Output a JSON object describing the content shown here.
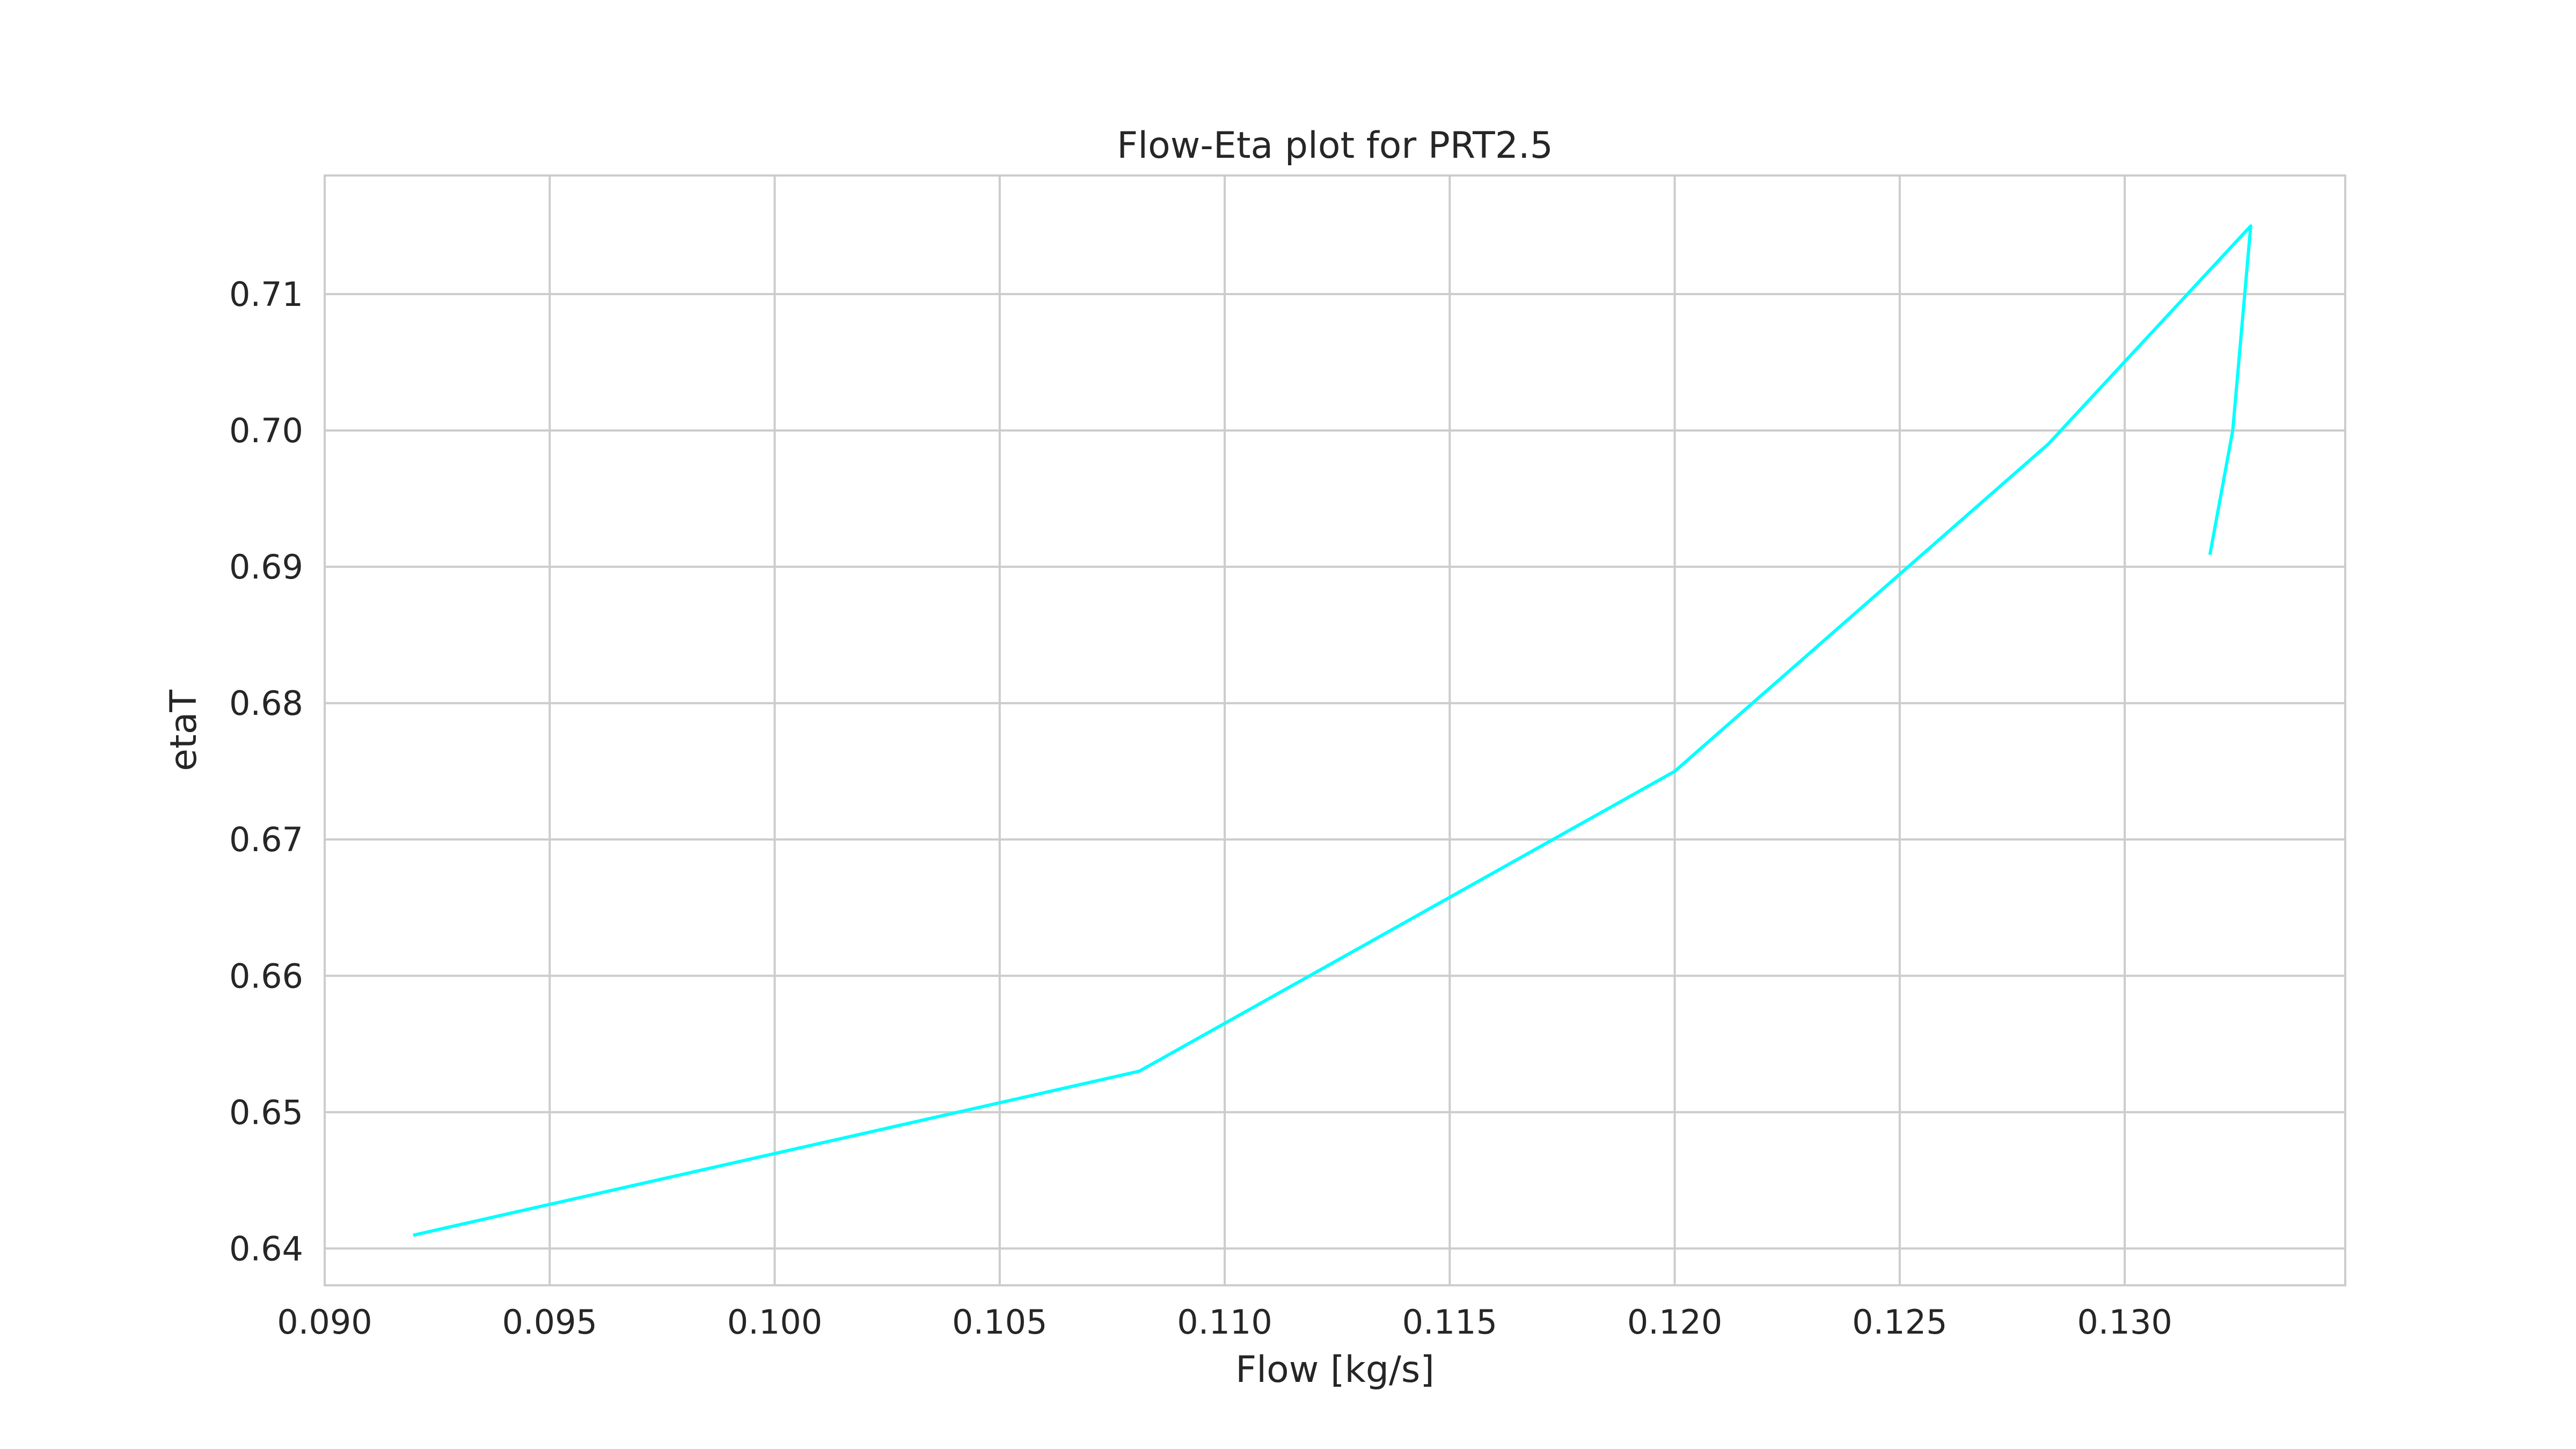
{
  "chart_data": {
    "type": "line",
    "title": "Flow-Eta plot for PRT2.5",
    "xlabel": "Flow [kg/s]",
    "ylabel": "etaT",
    "xlim": [
      0.09,
      0.1349
    ],
    "ylim": [
      0.6373,
      0.7187
    ],
    "x_ticks": [
      0.09,
      0.095,
      0.1,
      0.105,
      0.11,
      0.115,
      0.12,
      0.125,
      0.13
    ],
    "x_tick_labels": [
      "0.090",
      "0.095",
      "0.100",
      "0.105",
      "0.110",
      "0.115",
      "0.120",
      "0.125",
      "0.130"
    ],
    "y_ticks": [
      0.64,
      0.65,
      0.66,
      0.67,
      0.68,
      0.69,
      0.7,
      0.71
    ],
    "y_tick_labels": [
      "0.64",
      "0.65",
      "0.66",
      "0.67",
      "0.68",
      "0.69",
      "0.70",
      "0.71"
    ],
    "grid": true,
    "series": [
      {
        "color": "#00ffff",
        "x": [
          0.092,
          0.1081,
          0.12,
          0.1283,
          0.1328,
          0.1324,
          0.1319
        ],
        "y": [
          0.641,
          0.653,
          0.675,
          0.699,
          0.715,
          0.7,
          0.691
        ]
      }
    ]
  }
}
